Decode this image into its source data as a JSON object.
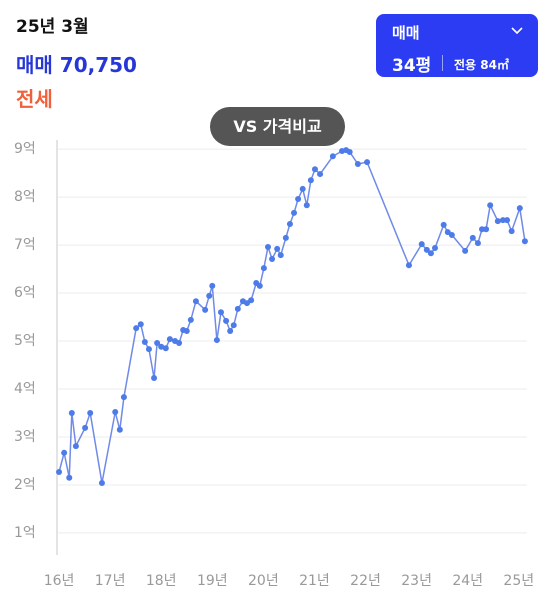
{
  "header": {
    "date": "25년 3월",
    "trade_label": "매매",
    "trade_price": "70,750",
    "jeonse_label": "전세"
  },
  "selector": {
    "deal_type": "매매",
    "size": "34평",
    "area_label": "전용",
    "area": "84㎡"
  },
  "compare_button": "VS 가격비교",
  "chart_data": {
    "type": "line",
    "color": "#6f8ae8",
    "marker_color": "#4d7be8",
    "grid": true,
    "x": [
      16.0,
      16.1,
      16.2,
      16.25,
      16.33,
      16.51,
      16.61,
      16.84,
      17.1,
      17.19,
      17.27,
      17.51,
      17.6,
      17.68,
      17.76,
      17.86,
      17.92,
      18.0,
      18.09,
      18.17,
      18.27,
      18.35,
      18.43,
      18.5,
      18.58,
      18.68,
      18.86,
      18.94,
      19.0,
      19.09,
      19.17,
      19.27,
      19.35,
      19.42,
      19.5,
      19.6,
      19.68,
      19.76,
      19.86,
      19.93,
      20.01,
      20.09,
      20.17,
      20.27,
      20.34,
      20.44,
      20.52,
      20.6,
      20.68,
      20.77,
      20.85,
      20.93,
      21.01,
      21.11,
      21.36,
      21.54,
      21.62,
      21.69,
      21.85,
      22.03,
      22.85,
      23.1,
      23.2,
      23.28,
      23.36,
      23.53,
      23.61,
      23.69,
      23.95,
      24.1,
      24.2,
      24.28,
      24.36,
      24.44,
      24.59,
      24.69,
      24.77,
      24.86,
      25.02,
      25.12
    ],
    "values": [
      2.27,
      2.67,
      2.15,
      3.5,
      2.81,
      3.19,
      3.5,
      2.04,
      3.52,
      3.15,
      3.83,
      5.27,
      5.35,
      4.98,
      4.83,
      4.23,
      4.96,
      4.88,
      4.85,
      5.04,
      5.0,
      4.96,
      5.23,
      5.21,
      5.44,
      5.83,
      5.65,
      5.94,
      6.15,
      5.02,
      5.6,
      5.42,
      5.21,
      5.33,
      5.67,
      5.83,
      5.79,
      5.85,
      6.21,
      6.15,
      6.52,
      6.96,
      6.71,
      6.92,
      6.79,
      7.15,
      7.44,
      7.67,
      7.96,
      8.17,
      7.83,
      8.35,
      8.58,
      8.48,
      8.85,
      8.96,
      8.98,
      8.94,
      8.69,
      8.73,
      6.58,
      7.02,
      6.9,
      6.83,
      6.94,
      7.42,
      7.27,
      7.21,
      6.88,
      7.15,
      7.04,
      7.33,
      7.33,
      7.83,
      7.5,
      7.52,
      7.52,
      7.29,
      7.77,
      7.08
    ],
    "xlim": [
      15.96,
      25.2
    ],
    "xticks": [
      {
        "value": 16,
        "label": "16년"
      },
      {
        "value": 17,
        "label": "17년"
      },
      {
        "value": 18,
        "label": "18년"
      },
      {
        "value": 19,
        "label": "19년"
      },
      {
        "value": 20,
        "label": "20년"
      },
      {
        "value": 21,
        "label": "21년"
      },
      {
        "value": 22,
        "label": "22년"
      },
      {
        "value": 23,
        "label": "23년"
      },
      {
        "value": 24,
        "label": "24년"
      },
      {
        "value": 25,
        "label": "25년"
      }
    ],
    "ylim": [
      0.54,
      9.19
    ],
    "yticks": [
      {
        "value": 1,
        "label": "1억"
      },
      {
        "value": 2,
        "label": "2억"
      },
      {
        "value": 3,
        "label": "3억"
      },
      {
        "value": 4,
        "label": "4억"
      },
      {
        "value": 5,
        "label": "5억"
      },
      {
        "value": 6,
        "label": "6억"
      },
      {
        "value": 7,
        "label": "7억"
      },
      {
        "value": 8,
        "label": "8억"
      },
      {
        "value": 9,
        "label": "9억"
      }
    ]
  }
}
